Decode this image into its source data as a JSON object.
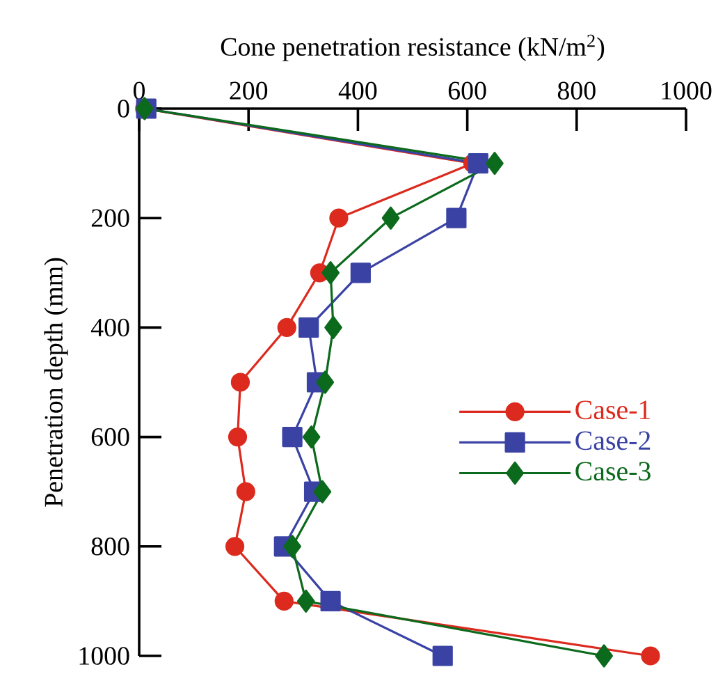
{
  "chart_data": {
    "type": "line",
    "xlabel": "Cone penetration resistance (kN/m$^{2}$)",
    "ylabel": "Penetration depth (mm)",
    "xlim": [
      0,
      1000
    ],
    "xticks": [
      0,
      200,
      400,
      600,
      800,
      1000
    ],
    "ylim": [
      1000,
      0
    ],
    "yticks": [
      0,
      200,
      400,
      600,
      800,
      1000
    ],
    "legend": "right",
    "grid": false,
    "series": [
      {
        "name": "Case-1",
        "color": "#dc2a1e",
        "marker": "circle",
        "x": [
          10,
          610,
          365,
          330,
          270,
          185,
          180,
          195,
          175,
          265,
          935
        ],
        "values": [
          0,
          100,
          200,
          300,
          400,
          500,
          600,
          700,
          800,
          900,
          1000
        ]
      },
      {
        "name": "Case-2",
        "color": "#3a42a4",
        "marker": "square",
        "x": [
          13,
          620,
          580,
          405,
          310,
          325,
          280,
          320,
          265,
          350,
          555
        ],
        "values": [
          0,
          100,
          200,
          300,
          400,
          500,
          600,
          700,
          800,
          900,
          1000
        ]
      },
      {
        "name": "Case-3",
        "color": "#0c6a1c",
        "marker": "diamond",
        "x": [
          10,
          650,
          460,
          350,
          355,
          340,
          315,
          335,
          280,
          305,
          850
        ],
        "values": [
          0,
          100,
          200,
          300,
          400,
          500,
          600,
          700,
          800,
          900,
          1000
        ]
      }
    ]
  }
}
